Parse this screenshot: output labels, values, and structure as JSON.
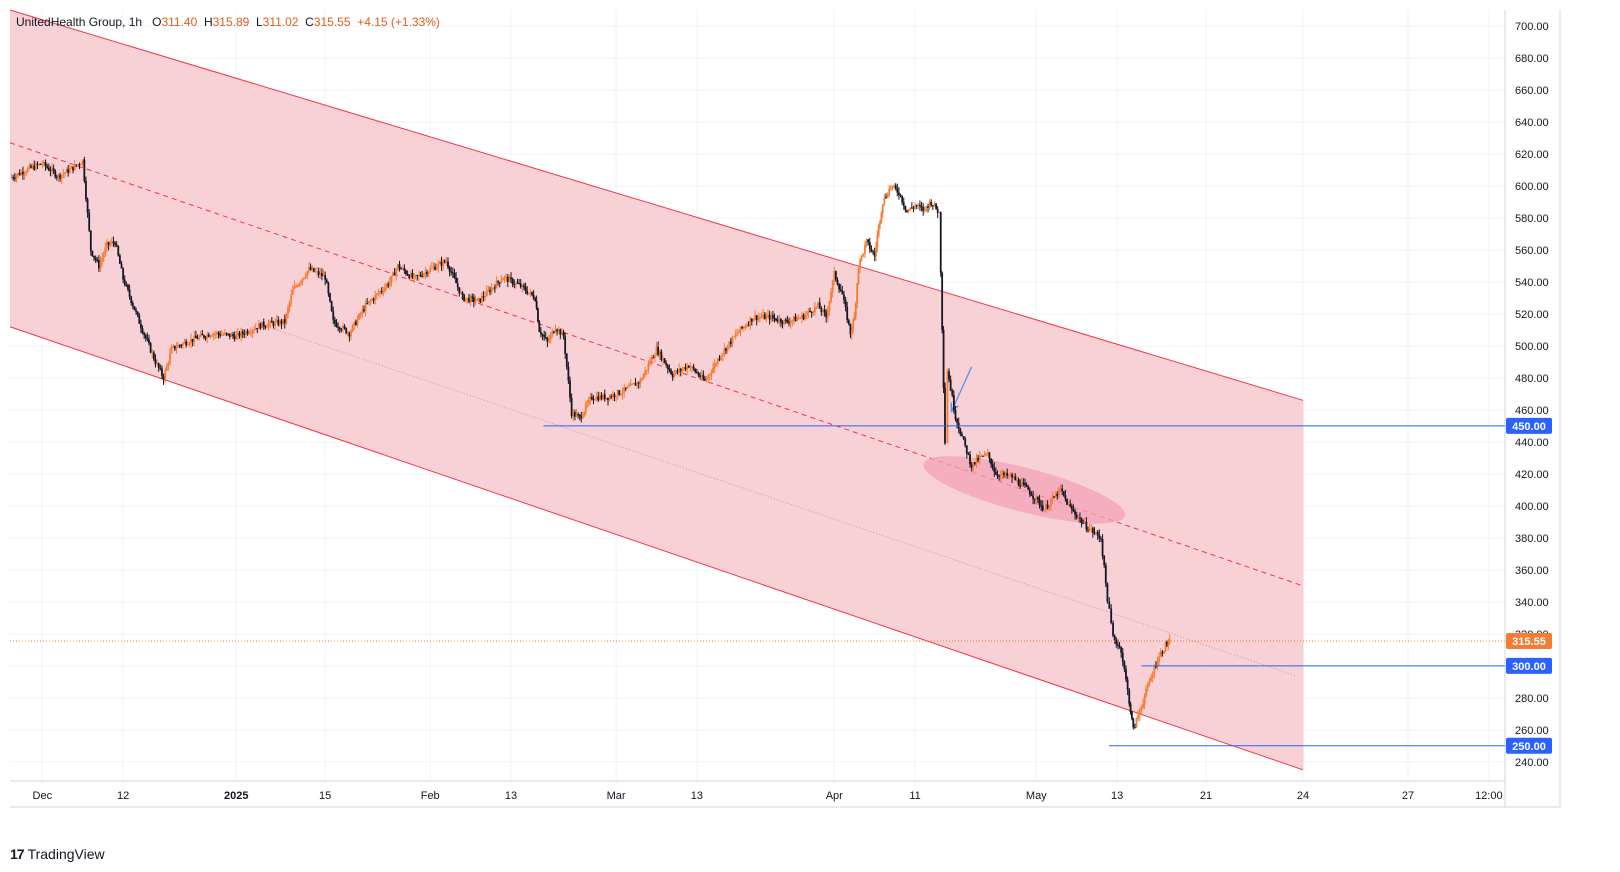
{
  "header": {
    "symbol": "UnitedHealth Group",
    "interval": "1h",
    "o_label": "O",
    "open": "311.40",
    "h_label": "H",
    "high": "315.89",
    "l_label": "L",
    "low": "311.02",
    "c_label": "C",
    "close": "315.55",
    "change": "+4.15 (+1.33%)"
  },
  "brand": {
    "name": "TradingView",
    "logo_text": "17"
  },
  "colors": {
    "channel_fill": "#f7c9cf",
    "channel_line": "#f23645",
    "hline": "#2962ff",
    "price_line": "#f57c32",
    "up": "#f57c32",
    "down": "#131722",
    "arrow": "#5b8def",
    "ellipse": "#f3a2b7"
  },
  "chart_data": {
    "type": "candlestick",
    "title": "UnitedHealth Group, 1h",
    "y_axis": {
      "ylim": [
        228,
        710
      ],
      "ticks": [
        240,
        260,
        280,
        300,
        320,
        340,
        360,
        380,
        400,
        420,
        440,
        460,
        480,
        500,
        520,
        540,
        560,
        580,
        600,
        620,
        640,
        660,
        680,
        700
      ],
      "tick_labels": [
        "240.00",
        "260.00",
        "280.00",
        "300.00",
        "320.00",
        "340.00",
        "360.00",
        "380.00",
        "400.00",
        "420.00",
        "440.00",
        "460.00",
        "480.00",
        "500.00",
        "520.00",
        "540.00",
        "560.00",
        "580.00",
        "600.00",
        "620.00",
        "640.00",
        "660.00",
        "680.00",
        "700.00"
      ]
    },
    "x_axis": {
      "range_days": [
        0,
        185
      ],
      "ticks": [
        {
          "label": "Dec",
          "day": 4
        },
        {
          "label": "12",
          "day": 14
        },
        {
          "label": "2025",
          "day": 28
        },
        {
          "label": "15",
          "day": 39
        },
        {
          "label": "Feb",
          "day": 52
        },
        {
          "label": "13",
          "day": 62
        },
        {
          "label": "Mar",
          "day": 75
        },
        {
          "label": "13",
          "day": 85
        },
        {
          "label": "Apr",
          "day": 102
        },
        {
          "label": "11",
          "day": 112
        },
        {
          "label": "May",
          "day": 127
        },
        {
          "label": "13",
          "day": 137
        },
        {
          "label": "21",
          "day": 148
        },
        {
          "label": "24",
          "day": 160
        },
        {
          "label": "27",
          "day": 173
        },
        {
          "label": "12:00",
          "day": 183
        }
      ]
    },
    "price_path": [
      [
        0,
        605
      ],
      [
        2,
        610
      ],
      [
        4,
        614
      ],
      [
        6,
        606
      ],
      [
        8,
        612
      ],
      [
        9,
        616
      ],
      [
        10,
        560
      ],
      [
        11,
        550
      ],
      [
        12,
        563
      ],
      [
        13,
        565
      ],
      [
        14,
        542
      ],
      [
        16,
        515
      ],
      [
        18,
        490
      ],
      [
        19,
        480
      ],
      [
        20,
        498
      ],
      [
        22,
        503
      ],
      [
        25,
        508
      ],
      [
        28,
        506
      ],
      [
        31,
        513
      ],
      [
        34,
        515
      ],
      [
        35,
        535
      ],
      [
        37,
        548
      ],
      [
        39,
        543
      ],
      [
        40,
        515
      ],
      [
        42,
        508
      ],
      [
        44,
        525
      ],
      [
        47,
        540
      ],
      [
        48,
        550
      ],
      [
        50,
        542
      ],
      [
        52,
        548
      ],
      [
        54,
        553
      ],
      [
        56,
        530
      ],
      [
        58,
        528
      ],
      [
        61,
        543
      ],
      [
        63,
        538
      ],
      [
        65,
        530
      ],
      [
        65.5,
        510
      ],
      [
        66.5,
        502
      ],
      [
        67.5,
        512
      ],
      [
        68.5,
        506
      ],
      [
        69.5,
        458
      ],
      [
        70.5,
        455
      ],
      [
        72,
        468
      ],
      [
        74,
        468
      ],
      [
        76,
        472
      ],
      [
        78,
        478
      ],
      [
        80,
        498
      ],
      [
        82,
        482
      ],
      [
        84,
        488
      ],
      [
        86,
        478
      ],
      [
        88,
        495
      ],
      [
        90,
        508
      ],
      [
        92,
        518
      ],
      [
        94,
        518
      ],
      [
        96,
        515
      ],
      [
        98,
        518
      ],
      [
        100,
        525
      ],
      [
        101,
        518
      ],
      [
        102,
        545
      ],
      [
        103,
        532
      ],
      [
        104,
        508
      ],
      [
        104.5,
        518
      ],
      [
        105,
        550
      ],
      [
        106,
        565
      ],
      [
        107,
        556
      ],
      [
        107.5,
        575
      ],
      [
        108,
        590
      ],
      [
        109,
        600
      ],
      [
        110,
        596
      ],
      [
        111,
        584
      ],
      [
        112,
        588
      ],
      [
        113,
        585
      ],
      [
        114,
        590
      ],
      [
        115,
        583
      ],
      [
        115.7,
        440
      ],
      [
        116,
        485
      ],
      [
        117,
        456
      ],
      [
        118,
        440
      ],
      [
        119,
        425
      ],
      [
        120,
        430
      ],
      [
        121,
        432
      ],
      [
        122,
        420
      ],
      [
        124,
        418
      ],
      [
        126,
        410
      ],
      [
        127,
        404
      ],
      [
        128,
        398
      ],
      [
        130,
        410
      ],
      [
        131,
        400
      ],
      [
        133,
        388
      ],
      [
        135,
        380
      ],
      [
        135.8,
        342
      ],
      [
        136.5,
        318
      ],
      [
        137.5,
        310
      ],
      [
        138.5,
        278
      ],
      [
        139,
        260
      ],
      [
        140,
        275
      ],
      [
        141,
        290
      ],
      [
        142,
        304
      ],
      [
        143,
        313
      ],
      [
        143.5,
        315.55
      ]
    ],
    "channel": {
      "upper": {
        "start": [
          0,
          710
        ],
        "end": [
          160,
          466
        ]
      },
      "middle": {
        "start": [
          0,
          627
        ],
        "end": [
          160,
          350
        ]
      },
      "lower": {
        "start": [
          0,
          512
        ],
        "end": [
          160,
          235
        ]
      },
      "inner_dotted": {
        "start": [
          33,
          510
        ],
        "end": [
          159,
          294
        ]
      }
    },
    "horizontal_levels": [
      {
        "label": "450.00",
        "value": 450,
        "start_day": 66
      },
      {
        "label": "300.00",
        "value": 300,
        "start_day": 140
      },
      {
        "label": "250.00",
        "value": 250,
        "start_day": 136
      }
    ],
    "last_price": {
      "label": "315.55",
      "value": 315.55
    },
    "annotations": [
      {
        "type": "arrow",
        "from": [
          119,
          487
        ],
        "to": [
          116.5,
          459
        ]
      },
      {
        "type": "ellipse_highlight",
        "days": [
          114,
          137
        ],
        "values": [
          425,
          395
        ]
      }
    ]
  }
}
